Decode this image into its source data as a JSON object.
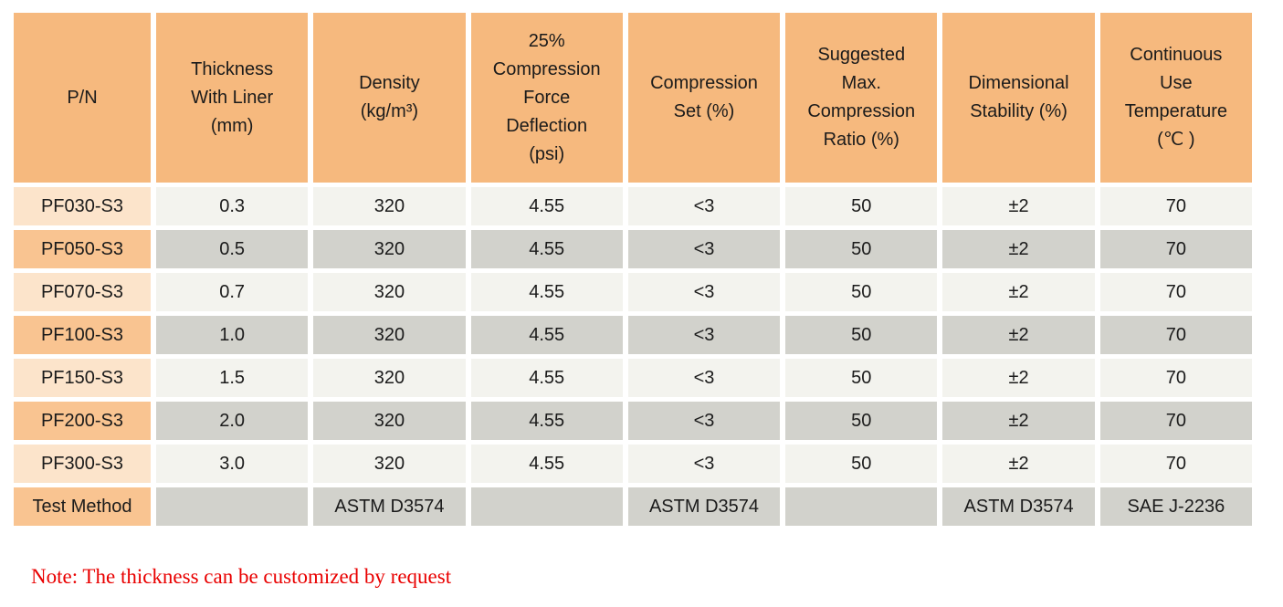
{
  "colors": {
    "header_bg": "#F6B97E",
    "label_odd_bg": "#FCE4CB",
    "label_even_bg": "#F9C491",
    "cell_odd_bg": "#F3F3EE",
    "cell_even_bg": "#D2D2CC",
    "note_color": "#E90000",
    "text_color": "#1b1b1b"
  },
  "header": {
    "columns": [
      "P/N",
      "Thickness\nWith Liner\n(mm)",
      "Density\n(kg/m³)",
      "25%\nCompression\nForce\nDeflection\n(psi)",
      "Compression\nSet (%)",
      "Suggested\nMax.\nCompression\nRatio (%)",
      "Dimensional\nStability (%)",
      "Continuous\nUse\nTemperature\n(℃ )"
    ]
  },
  "rows": [
    {
      "pn": "PF030-S3",
      "values": [
        "0.3",
        "320",
        "4.55",
        "<3",
        "50",
        "±2",
        "70"
      ]
    },
    {
      "pn": "PF050-S3",
      "values": [
        "0.5",
        "320",
        "4.55",
        "<3",
        "50",
        "±2",
        "70"
      ]
    },
    {
      "pn": "PF070-S3",
      "values": [
        "0.7",
        "320",
        "4.55",
        "<3",
        "50",
        "±2",
        "70"
      ]
    },
    {
      "pn": "PF100-S3",
      "values": [
        "1.0",
        "320",
        "4.55",
        "<3",
        "50",
        "±2",
        "70"
      ]
    },
    {
      "pn": "PF150-S3",
      "values": [
        "1.5",
        "320",
        "4.55",
        "<3",
        "50",
        "±2",
        "70"
      ]
    },
    {
      "pn": "PF200-S3",
      "values": [
        "2.0",
        "320",
        "4.55",
        "<3",
        "50",
        "±2",
        "70"
      ]
    },
    {
      "pn": "PF300-S3",
      "values": [
        "3.0",
        "320",
        "4.55",
        "<3",
        "50",
        "±2",
        "70"
      ]
    },
    {
      "pn": "Test Method",
      "values": [
        "",
        "ASTM D3574",
        "",
        "ASTM D3574",
        "",
        "ASTM D3574",
        "SAE J-2236"
      ]
    }
  ],
  "note": "Note: The thickness can be customized by request"
}
